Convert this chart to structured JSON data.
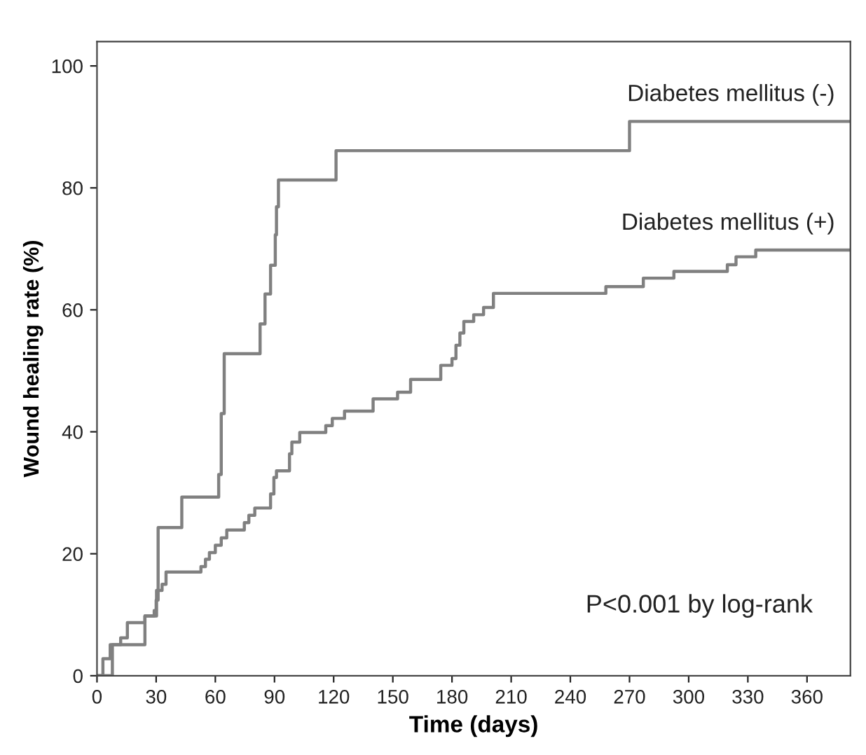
{
  "chart_data": {
    "type": "step",
    "xlabel": "Time (days)",
    "ylabel": "Wound healing rate (%)",
    "xlim": [
      0,
      382
    ],
    "ylim": [
      0,
      104
    ],
    "xticks": [
      0,
      30,
      60,
      90,
      120,
      150,
      180,
      210,
      240,
      270,
      300,
      330,
      360
    ],
    "yticks": [
      0,
      20,
      40,
      60,
      80,
      100
    ],
    "grid": false,
    "legend": false,
    "marker": "none",
    "line_style": "solid",
    "annotations": [
      "P<0.001 by log-rank"
    ],
    "series": [
      {
        "name": "Diabetes mellitus (-)",
        "color": "#808080",
        "x": [
          0,
          7.8,
          24.3,
          30.2,
          31,
          43,
          61.7,
          63,
          64.5,
          82.7,
          85.2,
          88,
          90.4,
          91,
          92,
          121.2,
          270,
          382
        ],
        "values": [
          0,
          5.1,
          9.8,
          14,
          24.3,
          29.3,
          33,
          43,
          52.8,
          57.7,
          62.6,
          67.3,
          72.3,
          76.9,
          81.3,
          86.1,
          90.9,
          90.9
        ]
      },
      {
        "name": "Diabetes mellitus (+)",
        "color": "#808080",
        "x": [
          0,
          3,
          6.7,
          12,
          15.4,
          24.3,
          29,
          30,
          31,
          33,
          35,
          52.7,
          55,
          57,
          60,
          63,
          65.8,
          74.7,
          77,
          80,
          88,
          89.7,
          91,
          97.6,
          98.8,
          102.8,
          116,
          119.3,
          125.5,
          140,
          152.4,
          159,
          174.3,
          180,
          182,
          184,
          186,
          191,
          196,
          201,
          258,
          277,
          292.5,
          319.6,
          324,
          334,
          382
        ],
        "values": [
          0,
          2.8,
          5.1,
          6.2,
          8.7,
          9.8,
          10.7,
          12.4,
          14,
          15,
          17,
          17.9,
          19.1,
          20.2,
          21.4,
          22.6,
          23.9,
          25.1,
          26.3,
          27.5,
          29.8,
          32.5,
          33.6,
          36.4,
          38.3,
          39.9,
          41,
          42.2,
          43.4,
          45.4,
          46.5,
          48.6,
          50.9,
          52,
          54.2,
          56.2,
          58.1,
          59.2,
          60.4,
          62.7,
          63.8,
          65.2,
          66.3,
          67.4,
          68.7,
          69.8,
          69.8
        ]
      }
    ]
  }
}
